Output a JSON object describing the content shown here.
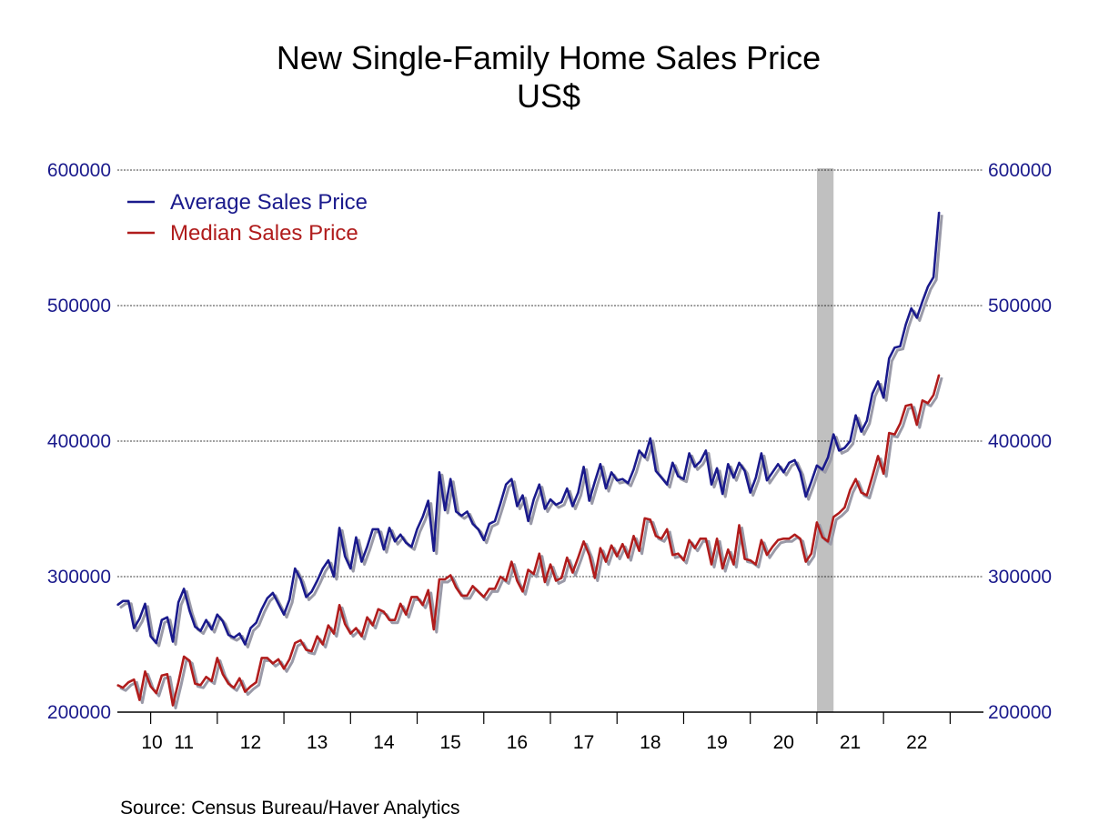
{
  "chart_data": {
    "type": "line",
    "title": "New Single-Family Home Sales Price",
    "subtitle": "US$",
    "source": "Source:  Census Bureau/Haver Analytics",
    "ylim": [
      200000,
      600000
    ],
    "yticks": [
      "200000",
      "300000",
      "400000",
      "500000",
      "600000"
    ],
    "xticks": [
      "10",
      "11",
      "12",
      "13",
      "14",
      "15",
      "16",
      "17",
      "18",
      "19",
      "20",
      "21",
      "22"
    ],
    "x_start": "2009-07",
    "x_end": "2022-07",
    "recession": {
      "start": "2020-02",
      "end": "2020-04",
      "color": "#c0c0c0"
    },
    "grid": true,
    "legend_position": "top-left",
    "series": [
      {
        "name": "Average Sales Price",
        "color": "#1a1a8c",
        "start": "2009-07",
        "values": [
          279000,
          282000,
          282000,
          262000,
          269000,
          280000,
          256000,
          251000,
          268000,
          270000,
          252000,
          281000,
          291000,
          275000,
          263000,
          260000,
          268000,
          261000,
          272000,
          267000,
          257000,
          255000,
          258000,
          250000,
          262000,
          266000,
          276000,
          284000,
          288000,
          280000,
          272000,
          283000,
          306000,
          298000,
          285000,
          289000,
          297000,
          306000,
          312000,
          300000,
          336000,
          315000,
          306000,
          329000,
          311000,
          322000,
          335000,
          335000,
          320000,
          336000,
          326000,
          331000,
          325000,
          322000,
          335000,
          344000,
          356000,
          319000,
          377000,
          349000,
          372000,
          348000,
          345000,
          348000,
          339000,
          335000,
          327000,
          339000,
          341000,
          354000,
          368000,
          372000,
          352000,
          360000,
          341000,
          357000,
          368000,
          350000,
          357000,
          353000,
          355000,
          365000,
          352000,
          362000,
          381000,
          356000,
          370000,
          383000,
          365000,
          377000,
          371000,
          372000,
          369000,
          379000,
          393000,
          388000,
          402000,
          378000,
          373000,
          368000,
          384000,
          374000,
          372000,
          391000,
          381000,
          385000,
          393000,
          368000,
          380000,
          361000,
          383000,
          373000,
          384000,
          378000,
          362000,
          373000,
          391000,
          371000,
          377000,
          383000,
          377000,
          384000,
          386000,
          377000,
          359000,
          370000,
          382000,
          379000,
          388000,
          405000,
          393000,
          395000,
          400000,
          419000,
          407000,
          415000,
          435000,
          444000,
          432000,
          461000,
          469000,
          470000,
          486000,
          498000,
          491000,
          503000,
          514000,
          521000,
          569000
        ]
      },
      {
        "name": "Median Sales Price",
        "color": "#b01c1c",
        "start": "2009-07",
        "values": [
          220000,
          218000,
          222000,
          224000,
          209000,
          230000,
          219000,
          214000,
          227000,
          228000,
          205000,
          222000,
          241000,
          238000,
          221000,
          220000,
          226000,
          223000,
          240000,
          228000,
          221000,
          218000,
          225000,
          215000,
          219000,
          222000,
          240000,
          240000,
          236000,
          239000,
          232000,
          239000,
          251000,
          253000,
          246000,
          245000,
          256000,
          250000,
          264000,
          258000,
          279000,
          265000,
          258000,
          262000,
          256000,
          270000,
          264000,
          276000,
          274000,
          268000,
          268000,
          280000,
          272000,
          285000,
          285000,
          279000,
          290000,
          261000,
          298000,
          298000,
          301000,
          292000,
          286000,
          286000,
          293000,
          289000,
          285000,
          291000,
          291000,
          300000,
          297000,
          311000,
          297000,
          289000,
          305000,
          302000,
          317000,
          296000,
          309000,
          297000,
          299000,
          314000,
          303000,
          314000,
          326000,
          316000,
          299000,
          321000,
          311000,
          323000,
          315000,
          324000,
          314000,
          330000,
          319000,
          343000,
          342000,
          330000,
          328000,
          335000,
          316000,
          317000,
          312000,
          327000,
          321000,
          328000,
          328000,
          309000,
          328000,
          306000,
          320000,
          309000,
          338000,
          313000,
          312000,
          309000,
          327000,
          316000,
          322000,
          327000,
          328000,
          328000,
          331000,
          328000,
          311000,
          317000,
          340000,
          329000,
          326000,
          344000,
          347000,
          351000,
          364000,
          372000,
          362000,
          360000,
          374000,
          389000,
          376000,
          406000,
          405000,
          413000,
          426000,
          427000,
          412000,
          430000,
          428000,
          434000,
          449000
        ]
      }
    ]
  }
}
